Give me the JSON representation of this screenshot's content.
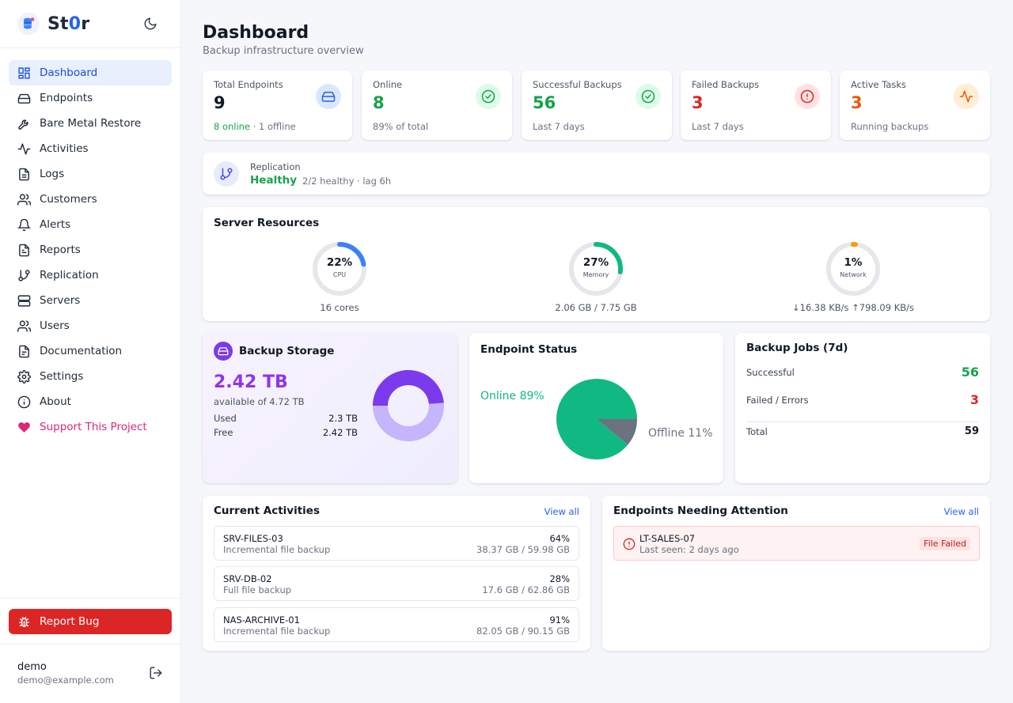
{
  "brand": {
    "name_prefix": "St",
    "name_accent": "0",
    "name_suffix": "r"
  },
  "nav": [
    {
      "label": "Dashboard",
      "icon": "dashboard-icon"
    },
    {
      "label": "Endpoints",
      "icon": "hard-drive-icon"
    },
    {
      "label": "Bare Metal Restore",
      "icon": "wrench-icon"
    },
    {
      "label": "Activities",
      "icon": "activity-icon"
    },
    {
      "label": "Logs",
      "icon": "file-text-icon"
    },
    {
      "label": "Customers",
      "icon": "users-icon"
    },
    {
      "label": "Alerts",
      "icon": "bell-icon"
    },
    {
      "label": "Reports",
      "icon": "file-icon"
    },
    {
      "label": "Replication",
      "icon": "git-branch-icon"
    },
    {
      "label": "Servers",
      "icon": "server-icon"
    },
    {
      "label": "Users",
      "icon": "users-icon"
    },
    {
      "label": "Documentation",
      "icon": "document-icon"
    },
    {
      "label": "Settings",
      "icon": "gear-icon"
    },
    {
      "label": "About",
      "icon": "info-icon"
    },
    {
      "label": "Support This Project",
      "icon": "heart-icon"
    }
  ],
  "report_bug": {
    "label": "Report Bug"
  },
  "user": {
    "name": "demo",
    "email": "demo@example.com"
  },
  "header": {
    "title": "Dashboard",
    "subtitle": "Backup infrastructure overview"
  },
  "stats": [
    {
      "label": "Total Endpoints",
      "value": "9",
      "sub": "",
      "sub_highlight": "8 online",
      "sub_rest": " · 1 offline",
      "color": "#111827",
      "icon": "hard-drive-icon"
    },
    {
      "label": "Online",
      "value": "8",
      "sub": "89% of total",
      "color": "#16a34a",
      "icon": "check-circle-icon"
    },
    {
      "label": "Successful Backups",
      "value": "56",
      "sub": "Last 7 days",
      "color": "#16a34a",
      "icon": "check-circle-icon"
    },
    {
      "label": "Failed Backups",
      "value": "3",
      "sub": "Last 7 days",
      "color": "#dc2626",
      "icon": "alert-circle-icon"
    },
    {
      "label": "Active Tasks",
      "value": "3",
      "sub": "Running backups",
      "color": "#ea580c",
      "icon": "activity-icon"
    }
  ],
  "replication": {
    "label": "Replication",
    "status": "Healthy",
    "detail": "2/2 healthy · lag 6h"
  },
  "server_resources": {
    "title": "Server Resources",
    "gauges": [
      {
        "percent": 22,
        "pct_label": "22%",
        "name": "CPU",
        "info": "16 cores",
        "color": "#3b82f6"
      },
      {
        "percent": 27,
        "pct_label": "27%",
        "name": "Memory",
        "info": "2.06 GB / 7.75 GB",
        "color": "#10b981"
      },
      {
        "percent": 1,
        "pct_label": "1%",
        "name": "Network",
        "info": "↓16.38 KB/s ↑798.09 KB/s",
        "color": "#f59e0b"
      }
    ]
  },
  "storage": {
    "title": "Backup Storage",
    "value": "2.42 TB",
    "available": "available of 4.72 TB",
    "used_label": "Used",
    "used_value": "2.3 TB",
    "free_label": "Free",
    "free_value": "2.42 TB",
    "used_tb": 2.3,
    "free_tb": 2.42
  },
  "endpoint_status": {
    "title": "Endpoint Status",
    "online_label": "Online 89%",
    "offline_label": "Offline 11%",
    "online_pct": 89,
    "offline_pct": 11
  },
  "backup_jobs": {
    "title": "Backup Jobs (7d)",
    "successful_label": "Successful",
    "successful_value": "56",
    "failed_label": "Failed / Errors",
    "failed_value": "3",
    "total_label": "Total",
    "total_value": "59"
  },
  "activities": {
    "title": "Current Activities",
    "view_all": "View all",
    "items": [
      {
        "name": "SRV-FILES-03",
        "type": "Incremental file backup",
        "percent": "64%",
        "size": "38.37 GB / 59.98 GB"
      },
      {
        "name": "SRV-DB-02",
        "type": "Full file backup",
        "percent": "28%",
        "size": "17.6 GB / 62.86 GB"
      },
      {
        "name": "NAS-ARCHIVE-01",
        "type": "Incremental file backup",
        "percent": "91%",
        "size": "82.05 GB / 90.15 GB"
      }
    ]
  },
  "attention": {
    "title": "Endpoints Needing Attention",
    "view_all": "View all",
    "items": [
      {
        "name": "LT-SALES-07",
        "seen": "Last seen: 2 days ago",
        "badge": "File Failed"
      }
    ]
  }
}
